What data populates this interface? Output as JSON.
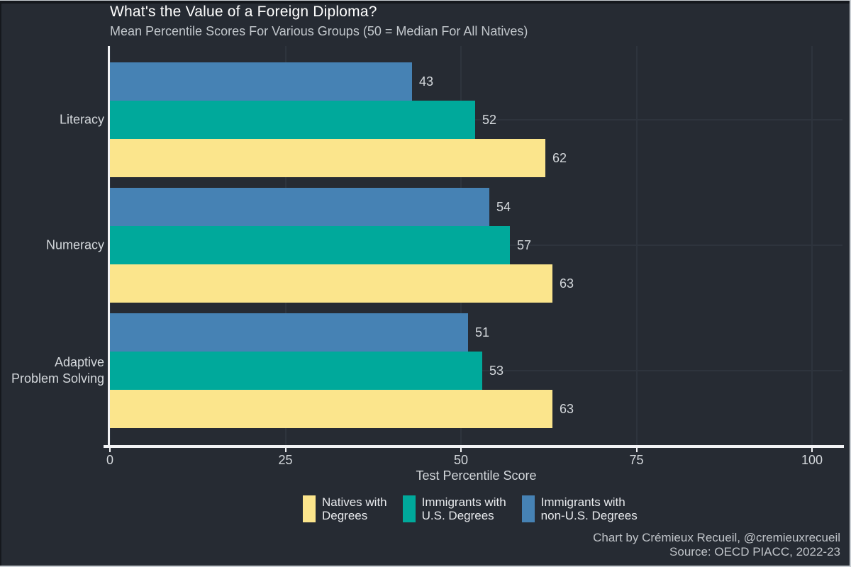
{
  "header": {
    "title": "What's the Value of a Foreign Diploma?",
    "subtitle": "Mean Percentile Scores For Various Groups (50 = Median For All Natives)"
  },
  "chart_data": {
    "type": "bar",
    "orientation": "horizontal",
    "title": "What's the Value of a Foreign Diploma?",
    "subtitle": "Mean Percentile Scores For Various Groups (50 = Median For All Natives)",
    "xlabel": "Test Percentile Score",
    "x_tick_labels": [
      "0",
      "25",
      "50",
      "75",
      "100"
    ],
    "x_tick_values": [
      0,
      25,
      50,
      75,
      100
    ],
    "xlim": [
      0,
      104
    ],
    "grid": true,
    "legend_position": "bottom",
    "categories": [
      {
        "name": "Literacy",
        "label_lines": [
          "Literacy"
        ]
      },
      {
        "name": "Numeracy",
        "label_lines": [
          "Numeracy"
        ]
      },
      {
        "name": "Adaptive Problem Solving",
        "label_lines": [
          "Adaptive",
          "Problem Solving"
        ]
      }
    ],
    "series_top_to_bottom": [
      {
        "name": "Immigrants with non-U.S. Degrees",
        "color": "#4682B4",
        "values": [
          43,
          54,
          51
        ]
      },
      {
        "name": "Immigrants with U.S. Degrees",
        "color": "#00A99B",
        "values": [
          52,
          57,
          53
        ]
      },
      {
        "name": "Natives with Degrees",
        "color": "#FBE58C",
        "values": [
          62,
          63,
          63
        ]
      }
    ]
  },
  "legend": {
    "items": [
      {
        "lines": [
          "Natives with",
          "Degrees"
        ],
        "color": "#FBE58C"
      },
      {
        "lines": [
          "Immigrants with",
          "U.S. Degrees"
        ],
        "color": "#00A99B"
      },
      {
        "lines": [
          "Immigrants with",
          "non-U.S. Degrees"
        ],
        "color": "#4682B4"
      }
    ]
  },
  "footer": {
    "credit": "Chart by Crémieux Recueil, @cremieuxrecueil",
    "source": "Source: OECD PIACC, 2022-23"
  },
  "colors": {
    "background": "#262B33",
    "axis": "#F2F3F5",
    "grid": "#2E343D",
    "title_text": "#FFFFFF",
    "secondary_text": "#D4D8DC",
    "footer_text": "#C0C4C9"
  }
}
